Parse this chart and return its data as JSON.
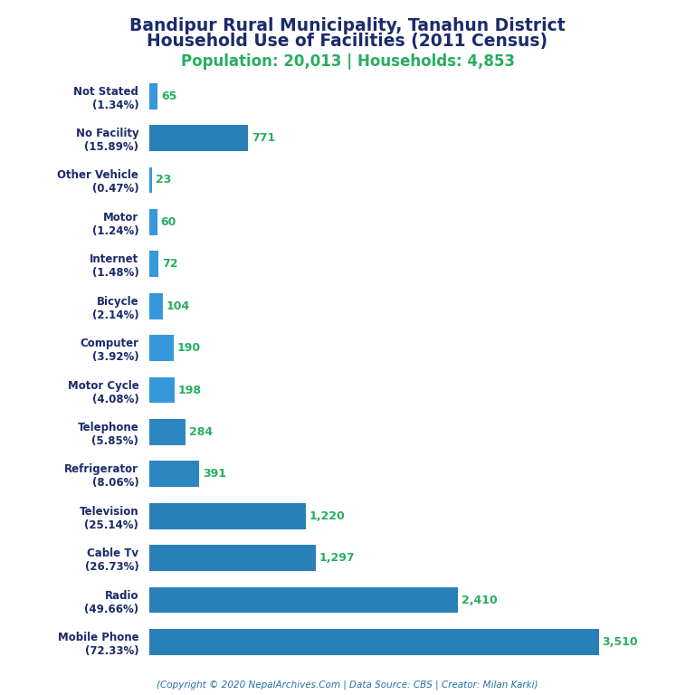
{
  "title_line1": "Bandipur Rural Municipality, Tanahun District",
  "title_line2": "Household Use of Facilities (2011 Census)",
  "subtitle": "Population: 20,013 | Households: 4,853",
  "footer": "(Copyright © 2020 NepalArchives.Com | Data Source: CBS | Creator: Milan Karki)",
  "categories": [
    "Mobile Phone\n(72.33%)",
    "Radio\n(49.66%)",
    "Cable Tv\n(26.73%)",
    "Television\n(25.14%)",
    "Refrigerator\n(8.06%)",
    "Telephone\n(5.85%)",
    "Motor Cycle\n(4.08%)",
    "Computer\n(3.92%)",
    "Bicycle\n(2.14%)",
    "Internet\n(1.48%)",
    "Motor\n(1.24%)",
    "Other Vehicle\n(0.47%)",
    "No Facility\n(15.89%)",
    "Not Stated\n(1.34%)"
  ],
  "values": [
    3510,
    2410,
    1297,
    1220,
    391,
    284,
    198,
    190,
    104,
    72,
    60,
    23,
    771,
    65
  ],
  "value_labels": [
    "3,510",
    "2,410",
    "1,297",
    "1,220",
    "391",
    "284",
    "198",
    "190",
    "104",
    "72",
    "60",
    "23",
    "771",
    "65"
  ],
  "bar_colors": [
    "#2980B9",
    "#2980B9",
    "#2980B9",
    "#2980B9",
    "#2E86C1",
    "#2E86C1",
    "#3498DB",
    "#3498DB",
    "#3498DB",
    "#3498DB",
    "#3498DB",
    "#3498DB",
    "#2980B9",
    "#3498DB"
  ],
  "value_color": "#27AE60",
  "title_color": "#1B2A6B",
  "subtitle_color": "#27AE60",
  "footer_color": "#2471A3",
  "ylabel_color": "#1B2A6B",
  "background_color": "#FFFFFF",
  "xlim": [
    0,
    3800
  ]
}
